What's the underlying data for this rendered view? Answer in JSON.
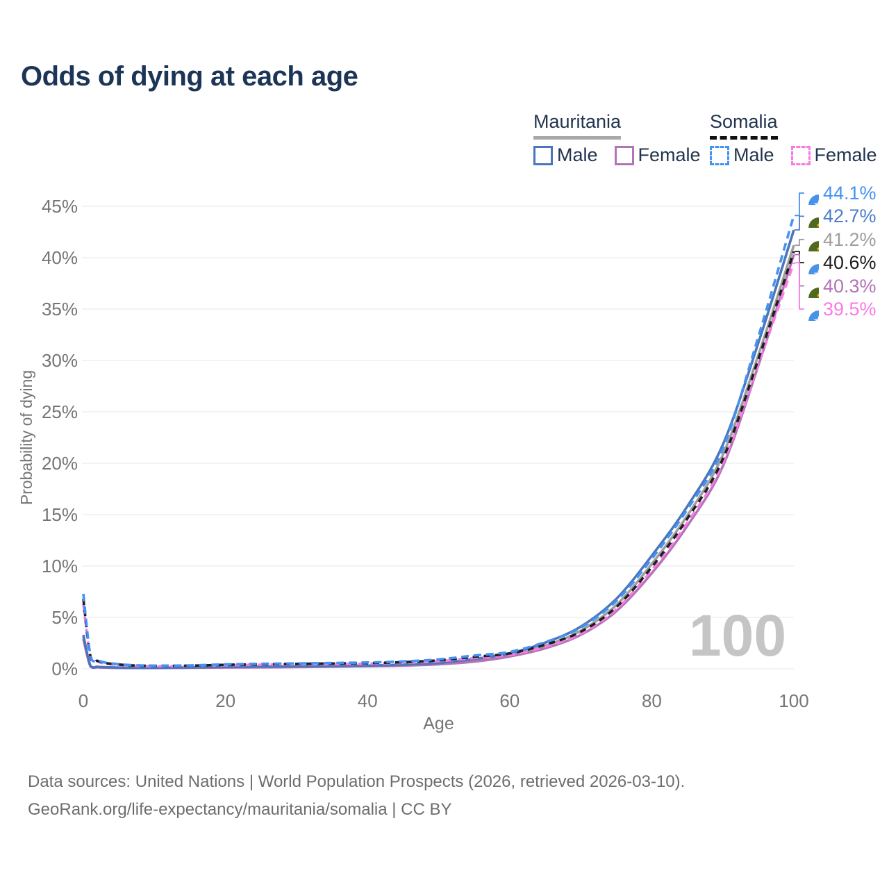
{
  "title": "Odds of dying at each age",
  "legend": {
    "groups": [
      {
        "country": "Mauritania",
        "line_style": "solid",
        "underline_color": "#a9a9a9",
        "items": [
          {
            "label": "Male",
            "color": "#4b76bb"
          },
          {
            "label": "Female",
            "color": "#b273b8"
          }
        ]
      },
      {
        "country": "Somalia",
        "line_style": "dashed",
        "underline_color": "#111111",
        "items": [
          {
            "label": "Male",
            "color": "#4592f3"
          },
          {
            "label": "Female",
            "color": "#fa7ae5"
          }
        ]
      }
    ]
  },
  "watermark": "100",
  "footer": {
    "line1": "Data sources: United Nations | World Population Prospects (2026, retrieved 2026-03-10).",
    "line2": "GeoRank.org/life-expectancy/mauritania/somalia | CC BY"
  },
  "chart_data": {
    "type": "line",
    "title": "Odds of dying at each age",
    "xlabel": "Age",
    "ylabel": "Probability of dying",
    "xlim": [
      0,
      100
    ],
    "ylim": [
      0,
      45
    ],
    "grid": "horizontal",
    "x_ticks": [
      {
        "value": 0,
        "label": "0"
      },
      {
        "value": 20,
        "label": "20"
      },
      {
        "value": 40,
        "label": "40"
      },
      {
        "value": 60,
        "label": "60"
      },
      {
        "value": 80,
        "label": "80"
      },
      {
        "value": 100,
        "label": "100"
      }
    ],
    "y_ticks": [
      {
        "value": 0,
        "label": "0%"
      },
      {
        "value": 5,
        "label": "5%"
      },
      {
        "value": 10,
        "label": "10%"
      },
      {
        "value": 15,
        "label": "15%"
      },
      {
        "value": 20,
        "label": "20%"
      },
      {
        "value": 25,
        "label": "25%"
      },
      {
        "value": 30,
        "label": "30%"
      },
      {
        "value": 35,
        "label": "35%"
      },
      {
        "value": 40,
        "label": "40%"
      },
      {
        "value": 45,
        "label": "45%"
      }
    ],
    "ages": [
      0,
      1,
      2,
      3,
      5,
      7,
      10,
      15,
      20,
      25,
      30,
      35,
      40,
      45,
      50,
      55,
      60,
      65,
      70,
      75,
      80,
      85,
      90,
      95,
      100
    ],
    "series": [
      {
        "name": "Mauritania Both sexes",
        "country": "Mauritania",
        "sex": "both",
        "color": "#9e9e9e",
        "dash": false,
        "values": [
          3.1,
          0.27,
          0.17,
          0.14,
          0.1,
          0.1,
          0.1,
          0.12,
          0.16,
          0.19,
          0.21,
          0.24,
          0.28,
          0.36,
          0.51,
          0.82,
          1.35,
          2.25,
          3.7,
          6.2,
          10.2,
          14.9,
          20.8,
          30.5,
          41.2
        ]
      },
      {
        "name": "Mauritania Female",
        "country": "Mauritania",
        "sex": "female",
        "color": "#b273b8",
        "dash": false,
        "values": [
          2.9,
          0.24,
          0.15,
          0.12,
          0.09,
          0.08,
          0.08,
          0.1,
          0.13,
          0.15,
          0.17,
          0.2,
          0.25,
          0.31,
          0.44,
          0.7,
          1.2,
          2.0,
          3.3,
          5.6,
          9.3,
          13.9,
          19.7,
          29.5,
          40.3
        ]
      },
      {
        "name": "Mauritania Male",
        "country": "Mauritania",
        "sex": "male",
        "color": "#4b76bb",
        "dash": false,
        "values": [
          3.3,
          0.3,
          0.2,
          0.16,
          0.12,
          0.11,
          0.11,
          0.14,
          0.19,
          0.22,
          0.24,
          0.27,
          0.32,
          0.41,
          0.58,
          0.95,
          1.5,
          2.55,
          4.1,
          6.8,
          11.0,
          15.8,
          21.8,
          31.7,
          42.7
        ]
      },
      {
        "name": "Somalia Female",
        "country": "Somalia",
        "sex": "female",
        "color": "#fa7ae5",
        "dash": true,
        "values": [
          6.3,
          1.15,
          0.72,
          0.52,
          0.38,
          0.3,
          0.26,
          0.28,
          0.35,
          0.4,
          0.43,
          0.46,
          0.5,
          0.59,
          0.74,
          1.05,
          1.35,
          2.15,
          3.4,
          5.8,
          9.6,
          14.2,
          20.0,
          29.6,
          39.5
        ]
      },
      {
        "name": "Somalia Both sexes",
        "country": "Somalia",
        "sex": "both",
        "color": "#1e1e1e",
        "dash": true,
        "values": [
          6.8,
          1.25,
          0.78,
          0.57,
          0.42,
          0.33,
          0.29,
          0.31,
          0.39,
          0.44,
          0.48,
          0.52,
          0.56,
          0.65,
          0.83,
          1.17,
          1.5,
          2.35,
          3.6,
          6.0,
          9.9,
          14.6,
          20.4,
          30.1,
          40.6
        ]
      },
      {
        "name": "Somalia Male",
        "country": "Somalia",
        "sex": "male",
        "color": "#4592f3",
        "dash": true,
        "values": [
          7.3,
          1.35,
          0.85,
          0.62,
          0.45,
          0.36,
          0.31,
          0.34,
          0.43,
          0.49,
          0.53,
          0.57,
          0.62,
          0.72,
          0.92,
          1.3,
          1.65,
          2.6,
          4.0,
          6.6,
          10.7,
          15.5,
          21.4,
          32.3,
          44.1
        ]
      }
    ],
    "end_labels": [
      {
        "label": "44.1%",
        "value": 44.1,
        "series": "Somalia Male",
        "flag": "somalia",
        "color": "#4592f3"
      },
      {
        "label": "42.7%",
        "value": 42.7,
        "series": "Mauritania Male",
        "flag": "mauritania",
        "color": "#4c7ccb"
      },
      {
        "label": "41.2%",
        "value": 41.2,
        "series": "Mauritania Both sexes",
        "flag": "mauritania",
        "color": "#9e9e9e"
      },
      {
        "label": "40.6%",
        "value": 40.6,
        "series": "Somalia Both sexes",
        "flag": "somalia",
        "color": "#1e1e1e"
      },
      {
        "label": "40.3%",
        "value": 40.3,
        "series": "Mauritania Female",
        "flag": "mauritania",
        "color": "#b273b8"
      },
      {
        "label": "39.5%",
        "value": 39.5,
        "series": "Somalia Female",
        "flag": "somalia",
        "color": "#fa7ae5"
      }
    ],
    "flag_colors": {
      "somalia": {
        "circle": "#4793ea",
        "star": "#f2f6ff"
      },
      "mauritania": {
        "circle": "#50691f",
        "crescent": "#ffc400"
      }
    }
  }
}
